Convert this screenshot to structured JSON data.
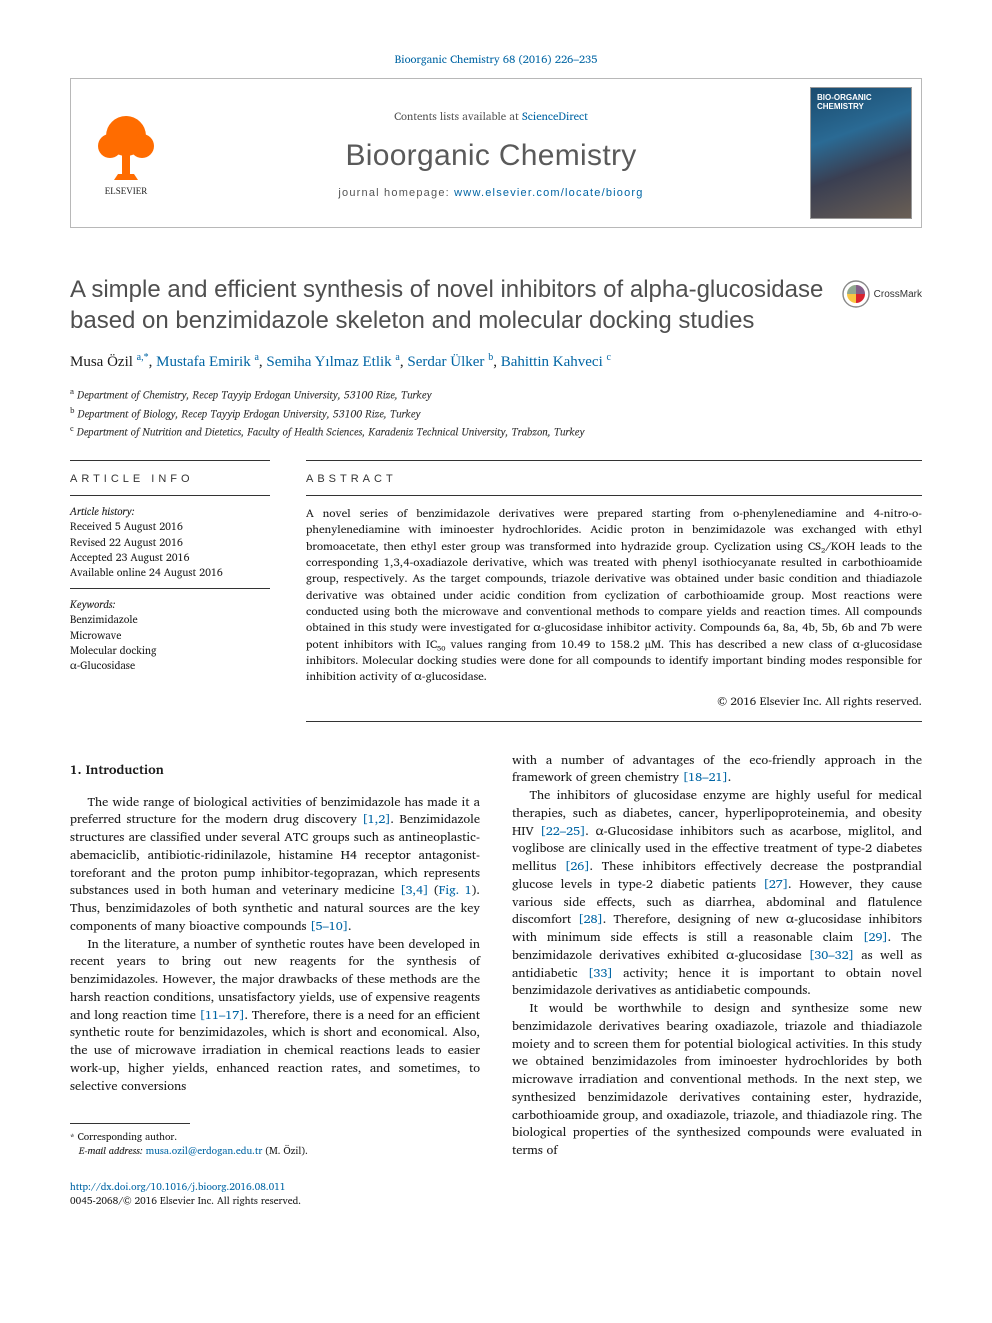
{
  "citation_line": "Bioorganic Chemistry 68 (2016) 226–235",
  "header": {
    "contents_prefix": "Contents lists available at ",
    "contents_link": "ScienceDirect",
    "journal": "Bioorganic Chemistry",
    "homepage_prefix": "journal homepage: ",
    "homepage_url": "www.elsevier.com/locate/bioorg",
    "publisher": "ELSEVIER",
    "cover_title": "BIO-ORGANIC CHEMISTRY"
  },
  "title": "A simple and efficient synthesis of novel inhibitors of alpha-glucosidase based on benzimidazole skeleton and molecular docking studies",
  "crossmark_label": "CrossMark",
  "authors_html": "Musa Özil <sup>a,*</sup>, <span class='author-link'>Mustafa Emirik</span> <sup>a</sup>, <span class='author-link'>Semiha Yılmaz Etlik</span> <sup>a</sup>, <span class='author-link'>Serdar Ülker</span> <sup>b</sup>, <span class='author-link'>Bahittin Kahveci</span> <sup>c</sup>",
  "affiliations": [
    {
      "sup": "a",
      "text": "Department of Chemistry, Recep Tayyip Erdogan University, 53100 Rize, Turkey"
    },
    {
      "sup": "b",
      "text": "Department of Biology, Recep Tayyip Erdogan University, 53100 Rize, Turkey"
    },
    {
      "sup": "c",
      "text": "Department of Nutrition and Dietetics, Faculty of Health Sciences, Karadeniz Technical University, Trabzon, Turkey"
    }
  ],
  "article_info": {
    "heading": "ARTICLE INFO",
    "history_label": "Article history:",
    "history": [
      "Received 5 August 2016",
      "Revised 22 August 2016",
      "Accepted 23 August 2016",
      "Available online 24 August 2016"
    ],
    "keywords_label": "Keywords:",
    "keywords": [
      "Benzimidazole",
      "Microwave",
      "Molecular docking",
      "α-Glucosidase"
    ]
  },
  "abstract": {
    "heading": "ABSTRACT",
    "text": "A novel series of benzimidazole derivatives were prepared starting from o-phenylenediamine and 4-nitro-o-phenylenediamine with iminoester hydrochlorides. Acidic proton in benzimidazole was exchanged with ethyl bromoacetate, then ethyl ester group was transformed into hydrazide group. Cyclization using CS₂/KOH leads to the corresponding 1,3,4-oxadiazole derivative, which was treated with phenyl isothiocyanate resulted in carbothioamide group, respectively. As the target compounds, triazole derivative was obtained under basic condition and thiadiazole derivative was obtained under acidic condition from cyclization of carbothioamide group. Most reactions were conducted using both the microwave and conventional methods to compare yields and reaction times. All compounds obtained in this study were investigated for α-glucosidase inhibitor activity. Compounds 6a, 8a, 4b, 5b, 6b and 7b were potent inhibitors with IC₅₀ values ranging from 10.49 to 158.2 µM. This has described a new class of α-glucosidase inhibitors. Molecular docking studies were done for all compounds to identify important binding modes responsible for inhibition activity of α-glucosidase.",
    "copyright": "© 2016 Elsevier Inc. All rights reserved."
  },
  "body": {
    "section_number": "1.",
    "section_title": "Introduction",
    "left_paras": [
      "The wide range of biological activities of benzimidazole has made it a preferred structure for the modern drug discovery <span class='ref'>[1,2]</span>. Benzimidazole structures are classified under several ATC groups such as antineoplastic-abemaciclib, antibiotic-ridinilazole, histamine H4 receptor antagonist-toreforant and the proton pump inhibitor-tegoprazan, which represents substances used in both human and veterinary medicine <span class='ref'>[3,4]</span> (<span class='ref'>Fig. 1</span>). Thus, benzimidazoles of both synthetic and natural sources are the key components of many bioactive compounds <span class='ref'>[5–10]</span>.",
      "In the literature, a number of synthetic routes have been developed in recent years to bring out new reagents for the synthesis of benzimidazoles. However, the major drawbacks of these methods are the harsh reaction conditions, unsatisfactory yields, use of expensive reagents and long reaction time <span class='ref'>[11–17]</span>. Therefore, there is a need for an efficient synthetic route for benzimidazoles, which is short and economical. Also, the use of microwave irradiation in chemical reactions leads to easier work-up, higher yields, enhanced reaction rates, and sometimes, to selective conversions"
    ],
    "right_paras": [
      "with a number of advantages of the eco-friendly approach in the framework of green chemistry <span class='ref'>[18–21]</span>.",
      "The inhibitors of glucosidase enzyme are highly useful for medical therapies, such as diabetes, cancer, hyperlipoproteinemia, and obesity HIV <span class='ref'>[22–25]</span>. α-Glucosidase inhibitors such as acarbose, miglitol, and voglibose are clinically used in the effective treatment of type-2 diabetes mellitus <span class='ref'>[26]</span>. These inhibitors effectively decrease the postprandial glucose levels in type-2 diabetic patients <span class='ref'>[27]</span>. However, they cause various side effects, such as diarrhea, abdominal and flatulence discomfort <span class='ref'>[28]</span>. Therefore, designing of new α-glucosidase inhibitors with minimum side effects is still a reasonable claim <span class='ref'>[29]</span>. The benzimidazole derivatives exhibited α-glucosidase <span class='ref'>[30–32]</span> as well as antidiabetic <span class='ref'>[33]</span> activity; hence it is important to obtain novel benzimidazole derivatives as antidiabetic compounds.",
      "It would be worthwhile to design and synthesize some new benzimidazole derivatives bearing oxadiazole, triazole and thiadiazole moiety and to screen them for potential biological activities. In this study we obtained benzimidazoles from iminoester hydrochlorides by both microwave irradiation and conventional methods. In the next step, we synthesized benzimidazole derivatives containing ester, hydrazide, carbothioamide group, and oxadiazole, triazole, and thiadiazole ring. The biological properties of the synthesized compounds were evaluated in terms of"
    ]
  },
  "footnote": {
    "corresponding": "Corresponding author.",
    "email_label": "E-mail address:",
    "email": "musa.ozil@erdogan.edu.tr",
    "email_who": "(M. Özil)."
  },
  "doi": {
    "url": "http://dx.doi.org/10.1016/j.bioorg.2016.08.011",
    "issn_line": "0045-2068/© 2016 Elsevier Inc. All rights reserved."
  },
  "colors": {
    "link": "#0065a4",
    "elsevier_orange": "#ff6c00",
    "heading_gray": "#4f4f4f"
  }
}
